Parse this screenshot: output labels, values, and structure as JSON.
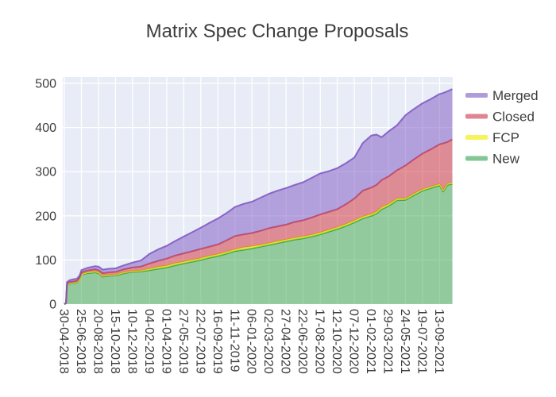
{
  "figure": {
    "title": "Matrix Spec Change Proposals"
  },
  "chart_data": {
    "type": "area",
    "stacked": true,
    "title": "Matrix Spec Change Proposals",
    "plot_bgcolor": "#e8ecf6",
    "grid_color": "#ffffff",
    "font_color": "#3d3d3d",
    "y_axis": {
      "ticks": [
        0,
        100,
        200,
        300,
        400,
        500
      ],
      "range": [
        0,
        500
      ],
      "grid": true
    },
    "x_axis": {
      "tick_angle": 90,
      "grid": true,
      "tick_labels": [
        "30-04-2018",
        "25-06-2018",
        "20-08-2018",
        "15-10-2018",
        "10-12-2018",
        "04-02-2019",
        "01-04-2019",
        "27-05-2019",
        "22-07-2019",
        "16-09-2019",
        "11-11-2019",
        "06-01-2020",
        "02-03-2020",
        "27-04-2020",
        "22-06-2020",
        "17-08-2020",
        "12-10-2020",
        "07-12-2020",
        "01-02-2021",
        "29-03-2021",
        "24-05-2021",
        "19-07-2021",
        "13-09-2021"
      ]
    },
    "x_units": "tick-interval-index",
    "x": [
      0,
      0.1,
      0.16,
      0.3,
      0.5,
      0.75,
      0.9,
      1,
      1.35,
      1.8,
      2,
      2.25,
      2.6,
      3,
      3.5,
      4,
      4.5,
      5,
      5.5,
      6,
      6.5,
      7,
      7.5,
      8,
      8.5,
      9,
      9.5,
      10,
      10.5,
      11,
      11.5,
      12,
      12.5,
      13,
      13.5,
      14,
      14.5,
      15,
      15.5,
      16,
      16.5,
      17,
      17.5,
      18,
      18.3,
      18.6,
      19,
      19.5,
      20,
      20.5,
      21,
      21.5,
      22,
      22.2,
      22.45,
      22.74
    ],
    "series": [
      {
        "name": "New",
        "fill": "rgba(60,168,70,0.5)",
        "stroke": "rgba(45,158,62,0.85)",
        "values": [
          0,
          1,
          44,
          46,
          47,
          49,
          55,
          67,
          70,
          72,
          70,
          62,
          64,
          65,
          70,
          73,
          74,
          77,
          80,
          83,
          88,
          92,
          96,
          100,
          105,
          109,
          114,
          120,
          123,
          126,
          130,
          134,
          138,
          142,
          146,
          149,
          153,
          158,
          164,
          170,
          177,
          185,
          194,
          200,
          205,
          215,
          222,
          235,
          236,
          247,
          257,
          263,
          269,
          255,
          270,
          272
        ]
      },
      {
        "name": "FCP",
        "fill": "rgba(248,244,0,0.5)",
        "stroke": "rgba(230,226,30,0.9)",
        "values": [
          0,
          0,
          1,
          1,
          1,
          1,
          1,
          1,
          2,
          2,
          2,
          2,
          2,
          2,
          2,
          2,
          2,
          3,
          4,
          4,
          4,
          4,
          4,
          4,
          4,
          4,
          4,
          4,
          5,
          5,
          4,
          4,
          4,
          4,
          4,
          4,
          4,
          4,
          4,
          4,
          4,
          4,
          4,
          4,
          4,
          4,
          4,
          4,
          3,
          3,
          3,
          3,
          3,
          3,
          3,
          3
        ]
      },
      {
        "name": "Closed",
        "fill": "rgba(210,44,52,0.5)",
        "stroke": "rgba(203,62,76,0.85)",
        "values": [
          0,
          1,
          2,
          3,
          3,
          3,
          4,
          4,
          4,
          5,
          5,
          6,
          6,
          6,
          7,
          8,
          9,
          12,
          14,
          16,
          18,
          19,
          20,
          21,
          21,
          22,
          26,
          30,
          30,
          30,
          32,
          34,
          34,
          34,
          36,
          37,
          39,
          41,
          41,
          41,
          45,
          50,
          59,
          60,
          61,
          62,
          63,
          64,
          75,
          78,
          81,
          85,
          90,
          106,
          94,
          98
        ]
      },
      {
        "name": "Merged",
        "fill": "rgba(124,84,194,0.5)",
        "stroke": "rgba(124,84,194,0.85)",
        "values": [
          0,
          1,
          3,
          4,
          5,
          5,
          5,
          5,
          6,
          7,
          8,
          8,
          8,
          8,
          9,
          11,
          14,
          22,
          26,
          29,
          33,
          38,
          43,
          48,
          54,
          59,
          62,
          66,
          69,
          71,
          75,
          78,
          81,
          83,
          84,
          86,
          90,
          93,
          92,
          93,
          93,
          93,
          108,
          118,
          114,
          97,
          102,
          102,
          114,
          114,
          114,
          114,
          114,
          114,
          115,
          114
        ]
      }
    ],
    "legend": {
      "position": "right",
      "entries": [
        {
          "label": "Merged",
          "swatch": "#b19cda"
        },
        {
          "label": "Closed",
          "swatch": "#df8590"
        },
        {
          "label": "FCP",
          "swatch": "#f6f45c"
        },
        {
          "label": "New",
          "swatch": "#82c794"
        }
      ]
    }
  }
}
